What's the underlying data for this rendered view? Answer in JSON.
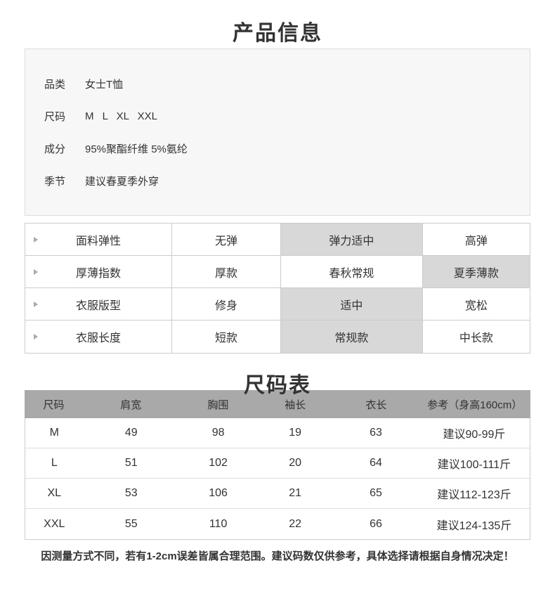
{
  "page": {
    "product_info_title": "产品信息",
    "size_chart_title": "尺码表",
    "footer_note": "因测量方式不同，若有1-2cm误差皆属合理范围。建议码数仅供参考，具体选择请根据自身情况决定！"
  },
  "product_info": {
    "rows": [
      {
        "label": "品类",
        "value": "女士T恤"
      },
      {
        "label": "尺码",
        "value": "M L XL XXL"
      },
      {
        "label": "成分",
        "value": "95%聚酯纤维 5%氨纶"
      },
      {
        "label": "季节",
        "value": "建议春夏季外穿"
      }
    ]
  },
  "attributes": {
    "rows": [
      {
        "label": "面料弹性",
        "options": [
          "无弹",
          "弹力适中",
          "高弹"
        ],
        "selected_index": 1
      },
      {
        "label": "厚薄指数",
        "options": [
          "厚款",
          "春秋常规",
          "夏季薄款"
        ],
        "selected_index": 2
      },
      {
        "label": "衣服版型",
        "options": [
          "修身",
          "适中",
          "宽松"
        ],
        "selected_index": 1
      },
      {
        "label": "衣服长度",
        "options": [
          "短款",
          "常规款",
          "中长款"
        ],
        "selected_index": 1
      }
    ]
  },
  "size_table": {
    "headers": [
      "尺码",
      "肩宽",
      "胸围",
      "袖长",
      "衣长",
      "参考（身高160cm）"
    ],
    "rows": [
      [
        "M",
        "49",
        "98",
        "19",
        "63",
        "建议90-99斤"
      ],
      [
        "L",
        "51",
        "102",
        "20",
        "64",
        "建议100-111斤"
      ],
      [
        "XL",
        "53",
        "106",
        "21",
        "65",
        "建议112-123斤"
      ],
      [
        "XXL",
        "55",
        "110",
        "22",
        "66",
        "建议124-135斤"
      ]
    ]
  },
  "colors": {
    "text": "#333333",
    "info_box_bg": "#f7f7f7",
    "info_box_border": "#dddddd",
    "table_border": "#cccccc",
    "highlight_cell_bg": "#d8d8d8",
    "size_header_bg": "#a9a9a9",
    "page_bg": "#ffffff"
  }
}
